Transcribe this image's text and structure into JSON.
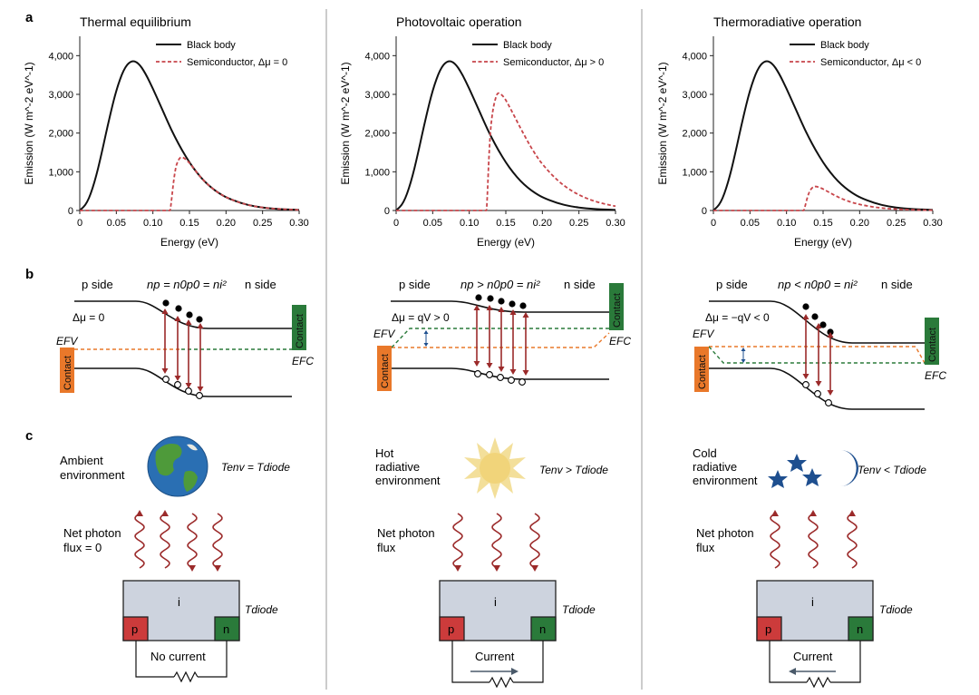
{
  "panel_labels": {
    "a": "a",
    "b": "b",
    "c": "c"
  },
  "chart_data": [
    {
      "type": "line",
      "title": "Thermal equilibrium",
      "xlabel": "Energy (eV)",
      "ylabel": "Emission (W m^-2 eV^-1)",
      "xlim": [
        0,
        0.3
      ],
      "ylim": [
        0,
        4500
      ],
      "xticks": [
        "0",
        "0.05",
        "0.10",
        "0.15",
        "0.20",
        "0.25",
        "0.30"
      ],
      "yticks": [
        "0",
        "1,000",
        "2,000",
        "3,000",
        "4,000"
      ],
      "legend": [
        "Black body",
        "Semiconductor, Δμ = 0"
      ],
      "series": [
        {
          "name": "Black body",
          "x": [
            0,
            0.01,
            0.02,
            0.03,
            0.04,
            0.05,
            0.06,
            0.07,
            0.08,
            0.09,
            0.1,
            0.11,
            0.12,
            0.13,
            0.14,
            0.15,
            0.16,
            0.17,
            0.18,
            0.19,
            0.2,
            0.22,
            0.24,
            0.26,
            0.28,
            0.3
          ],
          "y": [
            0,
            180,
            700,
            1480,
            2350,
            3120,
            3650,
            3880,
            3820,
            3540,
            3150,
            2730,
            2300,
            1900,
            1550,
            1240,
            980,
            760,
            590,
            450,
            340,
            190,
            100,
            55,
            30,
            15
          ]
        },
        {
          "name": "Semiconductor, Δμ = 0",
          "x": [
            0,
            0.123,
            0.124,
            0.13,
            0.135,
            0.14,
            0.15,
            0.16,
            0.17,
            0.18,
            0.19,
            0.2,
            0.22,
            0.24,
            0.26,
            0.28,
            0.3
          ],
          "y": [
            0,
            0,
            0,
            1050,
            1330,
            1400,
            1240,
            980,
            760,
            590,
            450,
            340,
            190,
            100,
            55,
            30,
            15
          ]
        }
      ]
    },
    {
      "type": "line",
      "title": "Photovoltaic operation",
      "xlabel": "Energy (eV)",
      "ylabel": "Emission (W m^-2 eV^-1)",
      "xlim": [
        0,
        0.3
      ],
      "ylim": [
        0,
        4500
      ],
      "xticks": [
        "0",
        "0.05",
        "0.10",
        "0.15",
        "0.20",
        "0.25",
        "0.30"
      ],
      "yticks": [
        "0",
        "1,000",
        "2,000",
        "3,000",
        "4,000"
      ],
      "legend": [
        "Black body",
        "Semiconductor, Δμ > 0"
      ],
      "series": [
        {
          "name": "Black body",
          "x": [
            0,
            0.01,
            0.02,
            0.03,
            0.04,
            0.05,
            0.06,
            0.07,
            0.08,
            0.09,
            0.1,
            0.11,
            0.12,
            0.13,
            0.14,
            0.15,
            0.16,
            0.17,
            0.18,
            0.19,
            0.2,
            0.22,
            0.24,
            0.26,
            0.28,
            0.3
          ],
          "y": [
            0,
            180,
            700,
            1480,
            2350,
            3120,
            3650,
            3880,
            3820,
            3540,
            3150,
            2730,
            2300,
            1900,
            1550,
            1240,
            980,
            760,
            590,
            450,
            340,
            190,
            100,
            55,
            30,
            15
          ]
        },
        {
          "name": "Semiconductor, Δμ > 0",
          "x": [
            0,
            0.123,
            0.124,
            0.128,
            0.132,
            0.137,
            0.14,
            0.145,
            0.15,
            0.16,
            0.17,
            0.18,
            0.19,
            0.2,
            0.22,
            0.24,
            0.26,
            0.28,
            0.3
          ],
          "y": [
            0,
            0,
            0,
            1900,
            2600,
            2980,
            3050,
            2980,
            2860,
            2500,
            2130,
            1780,
            1460,
            1190,
            780,
            500,
            310,
            190,
            110
          ]
        }
      ]
    },
    {
      "type": "line",
      "title": "Thermoradiative operation",
      "xlabel": "Energy (eV)",
      "ylabel": "Emission (W m^-2 eV^-1)",
      "xlim": [
        0,
        0.3
      ],
      "ylim": [
        0,
        4500
      ],
      "xticks": [
        "0",
        "0.05",
        "0.10",
        "0.15",
        "0.20",
        "0.25",
        "0.30"
      ],
      "yticks": [
        "0",
        "1,000",
        "2,000",
        "3,000",
        "4,000"
      ],
      "legend": [
        "Black body",
        "Semiconductor, Δμ < 0"
      ],
      "series": [
        {
          "name": "Black body",
          "x": [
            0,
            0.01,
            0.02,
            0.03,
            0.04,
            0.05,
            0.06,
            0.07,
            0.08,
            0.09,
            0.1,
            0.11,
            0.12,
            0.13,
            0.14,
            0.15,
            0.16,
            0.17,
            0.18,
            0.19,
            0.2,
            0.22,
            0.24,
            0.26,
            0.28,
            0.3
          ],
          "y": [
            0,
            180,
            700,
            1480,
            2350,
            3120,
            3650,
            3880,
            3820,
            3540,
            3150,
            2730,
            2300,
            1900,
            1550,
            1240,
            980,
            760,
            590,
            450,
            340,
            190,
            100,
            55,
            30,
            15
          ]
        },
        {
          "name": "Semiconductor, Δμ < 0",
          "x": [
            0,
            0.123,
            0.124,
            0.13,
            0.135,
            0.14,
            0.15,
            0.16,
            0.17,
            0.18,
            0.19,
            0.2,
            0.22,
            0.24,
            0.26,
            0.28,
            0.3
          ],
          "y": [
            0,
            0,
            0,
            450,
            600,
            630,
            560,
            450,
            350,
            270,
            205,
            155,
            85,
            45,
            25,
            14,
            7
          ]
        }
      ]
    }
  ],
  "band_diagrams": [
    {
      "p_side": "p side",
      "n_side": "n side",
      "condition": "np = n0p0 = ni²",
      "dmu": "Δμ = 0",
      "efv": "EFV",
      "efc": "EFC",
      "contact_left": "Contact",
      "contact_right": "Contact"
    },
    {
      "p_side": "p side",
      "n_side": "n side",
      "condition": "np > n0p0 = ni²",
      "dmu": "Δμ = qV > 0",
      "efv": "EFV",
      "efc": "EFC",
      "contact_left": "Contact",
      "contact_right": "Contact"
    },
    {
      "p_side": "p side",
      "n_side": "n side",
      "condition": "np < n0p0 = ni²",
      "dmu": "Δμ = −qV < 0",
      "efv": "EFV",
      "efc": "EFC",
      "contact_left": "Contact",
      "contact_right": "Contact"
    }
  ],
  "scenarios": [
    {
      "env_line1": "Ambient",
      "env_line2": "environment",
      "env_line3": "",
      "temp": "Tenv = Tdiode",
      "flux_line1": "Net photon",
      "flux_line2": "flux = 0",
      "intrinsic": "i",
      "p": "p",
      "n": "n",
      "tdiode": "Tdiode",
      "current": "No current"
    },
    {
      "env_line1": "Hot",
      "env_line2": "radiative",
      "env_line3": "environment",
      "temp": "Tenv > Tdiode",
      "flux_line1": "Net photon",
      "flux_line2": "flux",
      "intrinsic": "i",
      "p": "p",
      "n": "n",
      "tdiode": "Tdiode",
      "current": "Current"
    },
    {
      "env_line1": "Cold",
      "env_line2": "radiative",
      "env_line3": "environment",
      "temp": "Tenv < Tdiode",
      "flux_line1": "Net photon",
      "flux_line2": "flux",
      "intrinsic": "i",
      "p": "p",
      "n": "n",
      "tdiode": "Tdiode",
      "current": "Current"
    }
  ],
  "colors": {
    "blackbody": "#111111",
    "semiconductor": "#c8464b",
    "photon": "#9b2a2a",
    "contact_p": "#e9782a",
    "contact_n": "#2a7a3a",
    "fermi_p": "#e9782a",
    "fermi_n": "#2a7a3a",
    "diode_body": "#cdd3de",
    "p_region": "#cc3b3b",
    "n_region": "#2a7a3a",
    "star": "#1e4f8f"
  }
}
